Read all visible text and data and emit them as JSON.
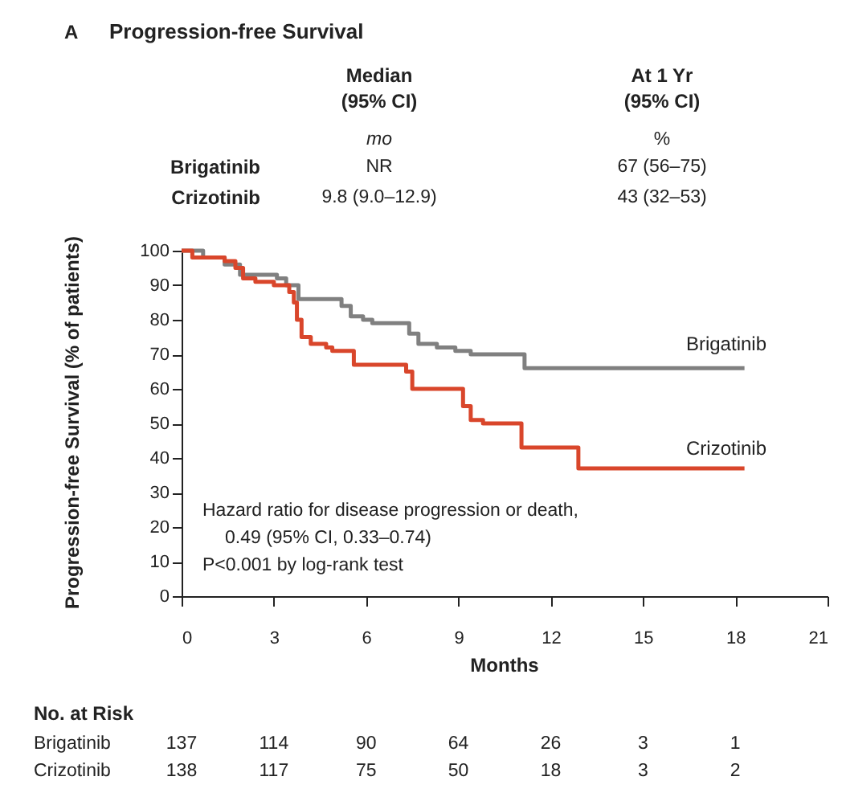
{
  "chart_data": {
    "type": "step",
    "title": "Progression-free Survival",
    "xlabel": "Months",
    "ylabel": "Progression-free Survival (% of patients)",
    "xlim": [
      0,
      21
    ],
    "xticks": [
      0,
      3,
      6,
      9,
      12,
      15,
      18,
      21
    ],
    "ylim": [
      0,
      100
    ],
    "yticks": [
      0,
      10,
      20,
      30,
      40,
      50,
      60,
      70,
      80,
      90,
      100
    ],
    "grid": false,
    "legend": false,
    "marker": "none",
    "line_style": "solid",
    "series": [
      {
        "name": "Brigatinib",
        "color": "#808080",
        "x": [
          0,
          0.7,
          1.4,
          1.9,
          3.1,
          3.4,
          3.8,
          5.2,
          5.5,
          5.9,
          6.2,
          7.4,
          7.7,
          8.3,
          8.9,
          9.4,
          11.15,
          18.3
        ],
        "values": [
          100,
          98,
          96,
          93,
          92,
          90,
          86,
          84,
          81,
          80,
          79,
          76,
          73,
          72,
          71,
          70,
          66,
          66
        ]
      },
      {
        "name": "Crizotinib",
        "color": "#d9462b",
        "x": [
          0,
          0.35,
          1.4,
          1.75,
          2.0,
          2.4,
          3.0,
          3.5,
          3.65,
          3.75,
          3.9,
          4.2,
          4.7,
          4.9,
          5.6,
          7.3,
          7.5,
          9.15,
          9.4,
          9.8,
          11.05,
          12.9,
          18.3
        ],
        "values": [
          100,
          98,
          97,
          95,
          92,
          91,
          90,
          88,
          85,
          80,
          75,
          73,
          72,
          71,
          67,
          65,
          60,
          55,
          51,
          50,
          43,
          37,
          37
        ]
      }
    ],
    "annotations": [
      "A",
      "Median",
      "(95% CI)",
      "mo",
      "At 1 Yr",
      "(95% CI)",
      "%",
      "Brigatinib",
      "NR",
      "67 (56–75)",
      "Crizotinib",
      "9.8 (9.0–12.9)",
      "43 (32–53)",
      "Hazard ratio for disease progression or death,",
      "0.49 (95% CI, 0.33–0.74)",
      "P<0.001 by log-rank test",
      "No. at Risk",
      "Brigatinib",
      "137",
      "114",
      "90",
      "64",
      "26",
      "3",
      "1",
      "Crizotinib",
      "138",
      "117",
      "75",
      "50",
      "18",
      "3",
      "2"
    ]
  }
}
